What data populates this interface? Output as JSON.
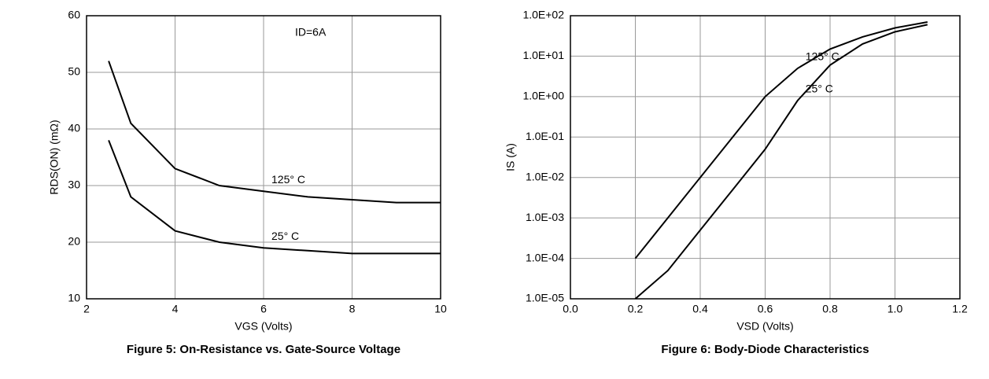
{
  "chart_data": [
    {
      "type": "line",
      "title": "Figure 5: On-Resistance vs. Gate-Source Voltage",
      "x_label": "VGS (Volts)",
      "y_label": "RDS(ON) (mΩ)",
      "annotation": "ID=6A",
      "x": [
        2.5,
        3,
        4,
        5,
        6,
        7,
        8,
        9,
        10
      ],
      "series": [
        {
          "name": "125° C",
          "color": "#000000",
          "values": [
            52,
            41,
            33,
            30,
            29,
            28,
            27.5,
            27,
            27
          ]
        },
        {
          "name": "25° C",
          "color": "#000000",
          "values": [
            38,
            28,
            22,
            20,
            19,
            18.5,
            18,
            18,
            18
          ]
        }
      ],
      "xlim": [
        2,
        10
      ],
      "xticks": [
        2,
        4,
        6,
        8,
        10
      ],
      "ylim": [
        10,
        60
      ],
      "yticks": [
        10,
        20,
        30,
        40,
        50,
        60
      ],
      "grid": true,
      "log_y": false
    },
    {
      "type": "line",
      "title": "Figure 6: Body-Diode Characteristics",
      "x_label": "VSD (Volts)",
      "y_label": "IS (A)",
      "x": [
        0.2,
        0.3,
        0.4,
        0.5,
        0.6,
        0.7,
        0.8,
        0.9,
        1.0,
        1.1
      ],
      "series": [
        {
          "name": "125° C",
          "color": "#000000",
          "values": [
            0.0001,
            0.001,
            0.01,
            0.1,
            1,
            5,
            15,
            30,
            50,
            70
          ]
        },
        {
          "name": "25° C",
          "color": "#000000",
          "values": [
            1e-05,
            5e-05,
            0.0005,
            0.005,
            0.05,
            0.8,
            6,
            20,
            40,
            60
          ]
        }
      ],
      "xlim": [
        0,
        1.2
      ],
      "xticks": [
        {
          "value": 0,
          "label": "0.0"
        },
        {
          "value": 0.2,
          "label": "0.2"
        },
        {
          "value": 0.4,
          "label": "0.4"
        },
        {
          "value": 0.6,
          "label": "0.6"
        },
        {
          "value": 0.8,
          "label": "0.8"
        },
        {
          "value": 1,
          "label": "1.0"
        },
        {
          "value": 1.2,
          "label": "1.2"
        }
      ],
      "ylim": [
        1e-05,
        100
      ],
      "yticks": [
        {
          "value": 1e-05,
          "label": "1.0E-05"
        },
        {
          "value": 0.0001,
          "label": "1.0E-04"
        },
        {
          "value": 0.001,
          "label": "1.0E-03"
        },
        {
          "value": 0.01,
          "label": "1.0E-02"
        },
        {
          "value": 0.1,
          "label": "1.0E-01"
        },
        {
          "value": 1,
          "label": "1.0E+00"
        },
        {
          "value": 10,
          "label": "1.0E+01"
        },
        {
          "value": 100,
          "label": "1.0E+02"
        }
      ],
      "grid": true,
      "log_y": true
    }
  ]
}
